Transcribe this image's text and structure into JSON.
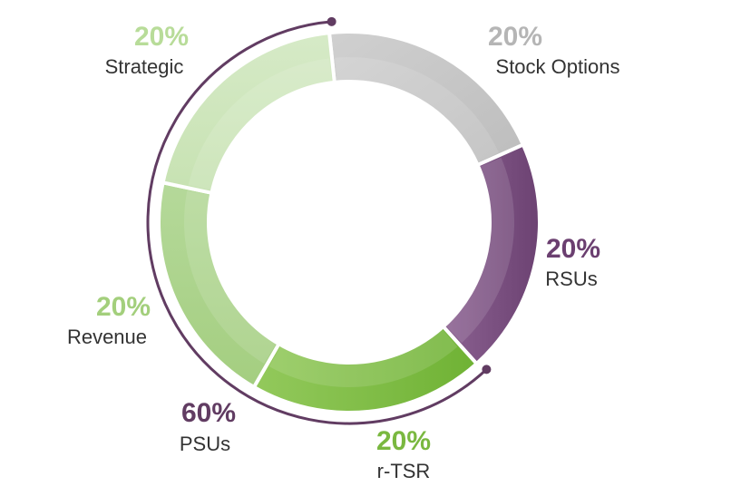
{
  "chart_data": {
    "type": "pie",
    "variant": "donut",
    "categories": [
      "Stock Options",
      "RSUs",
      "r-TSR",
      "Revenue",
      "Strategic"
    ],
    "values": [
      20,
      20,
      20,
      20,
      20
    ],
    "value_labels": [
      "20%",
      "20%",
      "20%",
      "20%",
      "20%"
    ],
    "colors": [
      "#c6c6c6",
      "#7a4f80",
      "#84bf46",
      "#abd38a",
      "#cfe6bd"
    ],
    "group": {
      "label": "PSUs",
      "value": 60,
      "value_label": "60%",
      "members": [
        "r-TSR",
        "Revenue",
        "Strategic"
      ],
      "color": "#613c62"
    },
    "title": "",
    "legend": "none",
    "grid": false
  }
}
